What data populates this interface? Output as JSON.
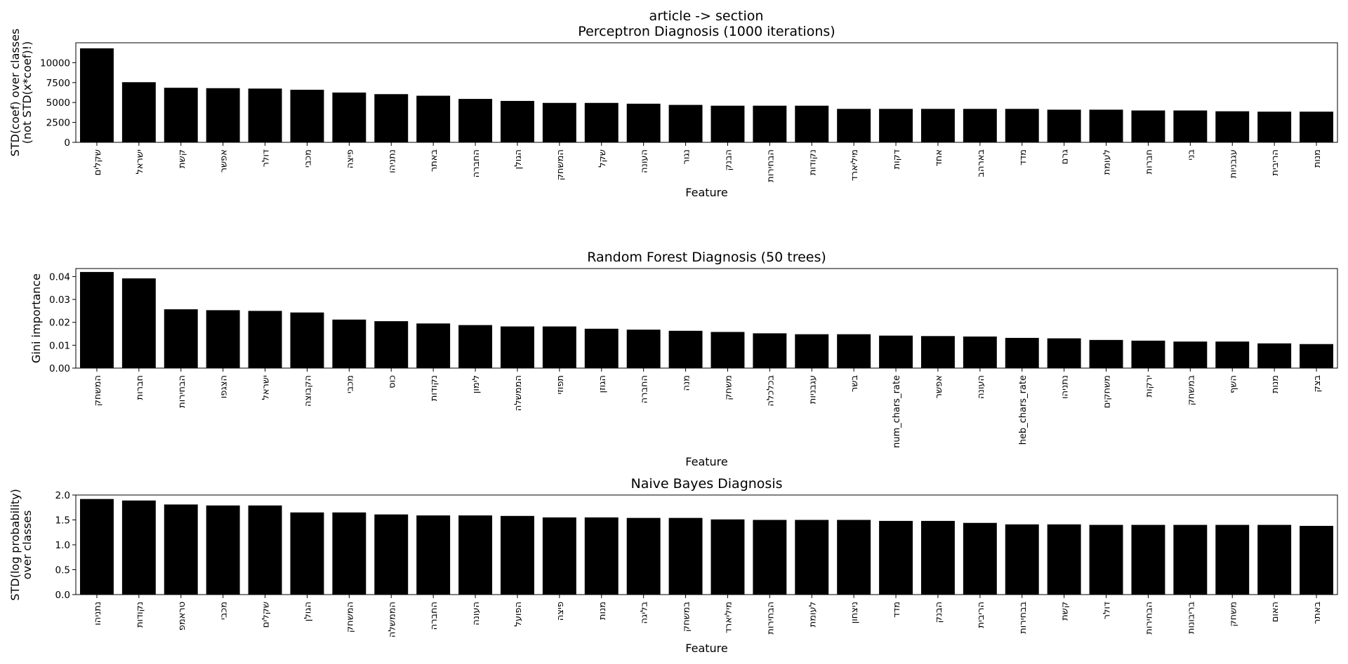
{
  "figure": {
    "suptitle": "article -> section"
  },
  "chart_data": [
    {
      "type": "bar",
      "title": "Perceptron Diagnosis (1000 iterations)",
      "xlabel": "Feature",
      "ylabel": [
        "STD(coef) over classes",
        "(not STD(x*coef)!)"
      ],
      "ylim": [
        0,
        12500
      ],
      "yticks": [
        0,
        2500,
        5000,
        7500,
        10000
      ],
      "color": "#000000",
      "grid": false,
      "categories": [
        "שקלים",
        "ישראל",
        "קשת",
        "אפשר",
        "דולר",
        "מכבי",
        "פיצה",
        "נתניהו",
        "באתר",
        "החברה",
        "הגולן",
        "המשחק",
        "שקל",
        "העונה",
        "נגור",
        "הבנק",
        "הבחירות",
        "נקודות",
        "מיליארד",
        "דקות",
        "אחד",
        "בארהב",
        "מדד",
        "גרם",
        "לעומת",
        "חברות",
        "בני",
        "עגבניות",
        "הריבית",
        "מנות"
      ],
      "values": [
        11800,
        7550,
        6850,
        6800,
        6750,
        6600,
        6250,
        6050,
        5850,
        5450,
        5200,
        4950,
        4950,
        4850,
        4700,
        4600,
        4600,
        4600,
        4200,
        4200,
        4200,
        4200,
        4200,
        4100,
        4100,
        4000,
        4000,
        3900,
        3850,
        3850
      ]
    },
    {
      "type": "bar",
      "title": "Random Forest Diagnosis (50 trees)",
      "xlabel": "Feature",
      "ylabel": [
        "Gini importance"
      ],
      "ylim": [
        0,
        0.0435
      ],
      "yticks": [
        0.0,
        0.01,
        0.02,
        0.03,
        0.04
      ],
      "ytick_labels": [
        "0.00",
        "0.01",
        "0.02",
        "0.03",
        "0.04"
      ],
      "color": "#000000",
      "grid": false,
      "categories": [
        "המשחק",
        "חברות",
        "הבחירות",
        "הצגפו",
        "ישראל",
        "הקבוצה",
        "מכבי",
        "כוס",
        "נקודות",
        "לימון",
        "הממשלה",
        "תפוזי",
        "הגוזן",
        "החברה",
        "מנה",
        "משחק",
        "בכלכלה",
        "עגבניות",
        "בשר",
        "num_chars_rate",
        "אפשר",
        "העונה",
        "heb_chars_rate",
        "נתניהו",
        "משחקים",
        "ירקות",
        "במשחק",
        "השף",
        "מנות",
        "בצק"
      ],
      "values": [
        0.042,
        0.0392,
        0.0257,
        0.0253,
        0.025,
        0.0243,
        0.0212,
        0.0205,
        0.0195,
        0.0188,
        0.0182,
        0.0182,
        0.0172,
        0.0168,
        0.0163,
        0.0158,
        0.0152,
        0.0148,
        0.0148,
        0.0142,
        0.014,
        0.0138,
        0.0132,
        0.013,
        0.0123,
        0.012,
        0.0116,
        0.0116,
        0.0108,
        0.0105
      ]
    },
    {
      "type": "bar",
      "title": "Naive Bayes Diagnosis",
      "xlabel": "Feature",
      "ylabel": [
        "STD(log probability)",
        "over classes"
      ],
      "ylim": [
        0,
        2.0
      ],
      "yticks": [
        0.0,
        0.5,
        1.0,
        1.5,
        2.0
      ],
      "ytick_labels": [
        "0.0",
        "0.5",
        "1.0",
        "1.5",
        "2.0"
      ],
      "color": "#000000",
      "grid": false,
      "categories": [
        "נתניהו",
        "נקודות",
        "טראמפ",
        "מכבי",
        "שקלים",
        "הגולן",
        "המשחק",
        "הממשלה",
        "החברה",
        "העונה",
        "הפועל",
        "פיצה",
        "מנות",
        "בליגה",
        "במשחק",
        "מיליארד",
        "הבחירות",
        "לעומת",
        "ניצחון",
        "מדד",
        "הבנק",
        "הריבית",
        "בבחירות",
        "קשת",
        "דולר",
        "הבחירות",
        "בריבונות",
        "משחק",
        "האום",
        "באתר"
      ],
      "values": [
        1.92,
        1.89,
        1.81,
        1.79,
        1.79,
        1.65,
        1.65,
        1.61,
        1.59,
        1.59,
        1.58,
        1.55,
        1.55,
        1.54,
        1.54,
        1.51,
        1.5,
        1.5,
        1.5,
        1.48,
        1.48,
        1.44,
        1.41,
        1.41,
        1.4,
        1.4,
        1.4,
        1.4,
        1.4,
        1.38
      ]
    }
  ]
}
